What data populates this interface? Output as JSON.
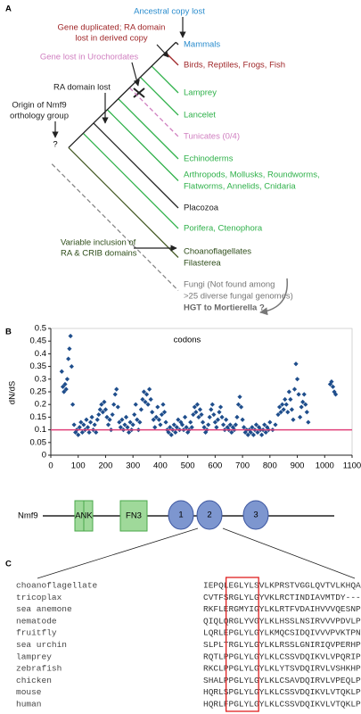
{
  "panel_a": {
    "label": "A",
    "taxa": [
      {
        "lines": [
          "Mammals"
        ],
        "color": "#2a8ccd",
        "branch_color": "#222222",
        "dashed": false
      },
      {
        "lines": [
          "Birds, Reptiles, Frogs, Fish"
        ],
        "color": "#a0282a",
        "branch_color": "#a0282a",
        "dashed": false
      },
      {
        "lines": [
          "Lamprey"
        ],
        "color": "#2fb14a",
        "branch_color": "#2fb14a",
        "dashed": false
      },
      {
        "lines": [
          "Lancelet"
        ],
        "color": "#2fb14a",
        "branch_color": "#2fb14a",
        "dashed": false
      },
      {
        "lines": [
          "Tunicates (0/4)"
        ],
        "color": "#d07fc0",
        "branch_color": "#d07fc0",
        "dashed": true
      },
      {
        "lines": [
          "Echinoderms"
        ],
        "color": "#2fb14a",
        "branch_color": "#2fb14a",
        "dashed": false
      },
      {
        "lines": [
          "Arthropods, Mollusks, Roundworms,",
          "Flatworms, Annelids, Cnidaria"
        ],
        "color": "#2fb14a",
        "branch_color": "#2fb14a",
        "dashed": false
      },
      {
        "lines": [
          "Placozoa"
        ],
        "color": "#222222",
        "branch_color": "#222222",
        "dashed": false
      },
      {
        "lines": [
          "Porifera, Ctenophora"
        ],
        "color": "#2fb14a",
        "branch_color": "#2fb14a",
        "dashed": false
      },
      {
        "lines": [
          "Choanoflagellates",
          "Filasterea"
        ],
        "color": "#2e4d1a",
        "branch_color": "#4a5e2a",
        "dashed": false
      },
      {
        "lines": [
          "Fungi (Not found among",
          ">25 diverse fungal genomes)"
        ],
        "color": "#777777",
        "branch_color": "#888888",
        "dashed": true
      }
    ],
    "hgt": "HGT to Mortierella ?",
    "annotations": {
      "ancestral": {
        "lines": [
          "Ancestral copy lost"
        ],
        "color": "#2a8ccd"
      },
      "duplicated": {
        "lines": [
          "Gene duplicated; RA domain",
          "lost in derived copy"
        ],
        "color": "#a0282a"
      },
      "urochordates": {
        "lines": [
          "Gene lost in Urochordates"
        ],
        "color": "#d07fc0"
      },
      "ra_lost": {
        "lines": [
          "RA domain lost"
        ],
        "color": "#222222"
      },
      "origin": {
        "lines": [
          "Origin of Nmf9",
          "orthology group"
        ],
        "color": "#222222"
      },
      "variable": {
        "lines": [
          "Variable inclusion of",
          "RA & CRIB domains"
        ],
        "color": "#2e4d1a"
      }
    },
    "question": "?"
  },
  "panel_b": {
    "label": "B"
  },
  "chart_data": {
    "type": "scatter",
    "ylabel": "dN/dS",
    "annotation": "codons",
    "color": "#1f4e8c",
    "xlim": [
      0,
      1100
    ],
    "xticks": [
      0,
      100,
      200,
      300,
      400,
      500,
      600,
      700,
      800,
      900,
      1000,
      1100
    ],
    "ylim": [
      0,
      0.5
    ],
    "yticks": [
      0,
      0.05,
      0.1,
      0.15,
      0.2,
      0.25,
      0.3,
      0.35,
      0.4,
      0.45,
      0.5
    ],
    "hline": {
      "value": 0.1,
      "color": "#e0407a"
    },
    "x": [
      40,
      44,
      48,
      52,
      56,
      60,
      64,
      68,
      72,
      76,
      80,
      85,
      90,
      95,
      100,
      105,
      110,
      115,
      120,
      125,
      130,
      135,
      140,
      145,
      150,
      155,
      160,
      165,
      170,
      175,
      180,
      185,
      190,
      195,
      200,
      205,
      210,
      215,
      220,
      225,
      230,
      235,
      240,
      245,
      250,
      255,
      260,
      265,
      270,
      275,
      280,
      285,
      290,
      295,
      300,
      305,
      310,
      315,
      320,
      325,
      330,
      335,
      340,
      345,
      350,
      355,
      360,
      365,
      370,
      375,
      380,
      385,
      390,
      395,
      400,
      405,
      410,
      415,
      420,
      425,
      430,
      435,
      440,
      445,
      450,
      455,
      460,
      465,
      470,
      475,
      480,
      485,
      490,
      495,
      500,
      505,
      510,
      515,
      520,
      525,
      530,
      535,
      540,
      545,
      550,
      555,
      560,
      565,
      570,
      575,
      580,
      585,
      590,
      595,
      600,
      605,
      610,
      615,
      620,
      625,
      630,
      635,
      640,
      645,
      650,
      655,
      660,
      665,
      670,
      675,
      680,
      685,
      690,
      695,
      700,
      705,
      710,
      715,
      720,
      725,
      730,
      735,
      740,
      745,
      750,
      755,
      760,
      765,
      770,
      775,
      780,
      785,
      790,
      795,
      800,
      810,
      820,
      830,
      835,
      840,
      845,
      850,
      855,
      860,
      865,
      870,
      875,
      880,
      885,
      890,
      895,
      900,
      905,
      910,
      915,
      920,
      925,
      930,
      935,
      940,
      1020,
      1025,
      1030,
      1035,
      1040
    ],
    "values": [
      0.33,
      0.27,
      0.25,
      0.28,
      0.26,
      0.3,
      0.38,
      0.42,
      0.47,
      0.35,
      0.2,
      0.12,
      0.09,
      0.1,
      0.08,
      0.11,
      0.13,
      0.09,
      0.12,
      0.1,
      0.14,
      0.11,
      0.09,
      0.13,
      0.15,
      0.1,
      0.12,
      0.09,
      0.14,
      0.16,
      0.18,
      0.2,
      0.17,
      0.21,
      0.18,
      0.15,
      0.12,
      0.14,
      0.1,
      0.16,
      0.2,
      0.24,
      0.26,
      0.19,
      0.13,
      0.11,
      0.14,
      0.1,
      0.12,
      0.15,
      0.11,
      0.09,
      0.13,
      0.1,
      0.12,
      0.16,
      0.2,
      0.14,
      0.1,
      0.13,
      0.18,
      0.22,
      0.25,
      0.21,
      0.24,
      0.2,
      0.26,
      0.22,
      0.17,
      0.14,
      0.11,
      0.15,
      0.19,
      0.14,
      0.12,
      0.16,
      0.2,
      0.17,
      0.13,
      0.1,
      0.09,
      0.11,
      0.08,
      0.1,
      0.12,
      0.09,
      0.11,
      0.14,
      0.1,
      0.13,
      0.12,
      0.1,
      0.15,
      0.11,
      0.09,
      0.1,
      0.13,
      0.11,
      0.16,
      0.19,
      0.17,
      0.2,
      0.15,
      0.18,
      0.16,
      0.13,
      0.11,
      0.09,
      0.1,
      0.12,
      0.15,
      0.18,
      0.2,
      0.16,
      0.13,
      0.11,
      0.14,
      0.17,
      0.19,
      0.15,
      0.12,
      0.1,
      0.14,
      0.11,
      0.1,
      0.12,
      0.09,
      0.11,
      0.1,
      0.12,
      0.15,
      0.2,
      0.23,
      0.19,
      0.14,
      0.11,
      0.09,
      0.1,
      0.08,
      0.1,
      0.09,
      0.11,
      0.08,
      0.1,
      0.12,
      0.09,
      0.11,
      0.1,
      0.08,
      0.1,
      0.12,
      0.09,
      0.11,
      0.1,
      0.13,
      0.1,
      0.12,
      0.16,
      0.19,
      0.17,
      0.2,
      0.18,
      0.22,
      0.2,
      0.17,
      0.25,
      0.22,
      0.18,
      0.14,
      0.26,
      0.36,
      0.3,
      0.24,
      0.15,
      0.19,
      0.21,
      0.24,
      0.2,
      0.17,
      0.13,
      0.28,
      0.29,
      0.27,
      0.25,
      0.24
    ]
  },
  "domains": {
    "gene": "Nmf9",
    "names": [
      "ANK",
      "FN3",
      "1",
      "2",
      "3"
    ]
  },
  "panel_c": {
    "label": "C",
    "rows": [
      {
        "name": "choanoflagellate",
        "seq": "IEPQLEGLYLSVLKPRSTVGGLQVTVLKHQAAVLPLVR"
      },
      {
        "name": "tricoplax",
        "seq": "CVTFSRGLYLGYVKLRCTINDIAVMTDY---------"
      },
      {
        "name": "sea anemone",
        "seq": "RKFLERGMYIGYLKLRTFVDAIHVVVQESNPNVLPHVK"
      },
      {
        "name": "nematode",
        "seq": "QIQLQRGLYVGYLKLHSSLNSIRVVVPDVLPSMLPFTR"
      },
      {
        "name": "fruitfly",
        "seq": "LQRLEPGLYLGYLKMQCSIDQIVVVPVKTPNVLPHCK"
      },
      {
        "name": "sea urchin",
        "seq": "SLPLTRGLYLGYLKLRSSLGNIRIQVPERHPSMLPHIK"
      },
      {
        "name": "lamprey",
        "seq": "RQTLPPGLYLGYLKLCSSVDQIKVLVPQRIPNSLVHLK"
      },
      {
        "name": "zebrafish",
        "seq": "RKCLPPGLYLGYLKLYTSVDQIRVLVSHKHPNVLCHVK"
      },
      {
        "name": "chicken",
        "seq": "SHALPPGLYLGYLKLCSAVDQIRVLVPEQLPNILCHVK"
      },
      {
        "name": "mouse",
        "seq": "HQRLSPGLYLGYLKLCSSVDQIKVLVTQKLPNILCHVK"
      },
      {
        "name": "human",
        "seq": "HQRLFPGLYLGYLKLCSSVDQIKVLVTQKLPNILCHVK"
      }
    ]
  }
}
